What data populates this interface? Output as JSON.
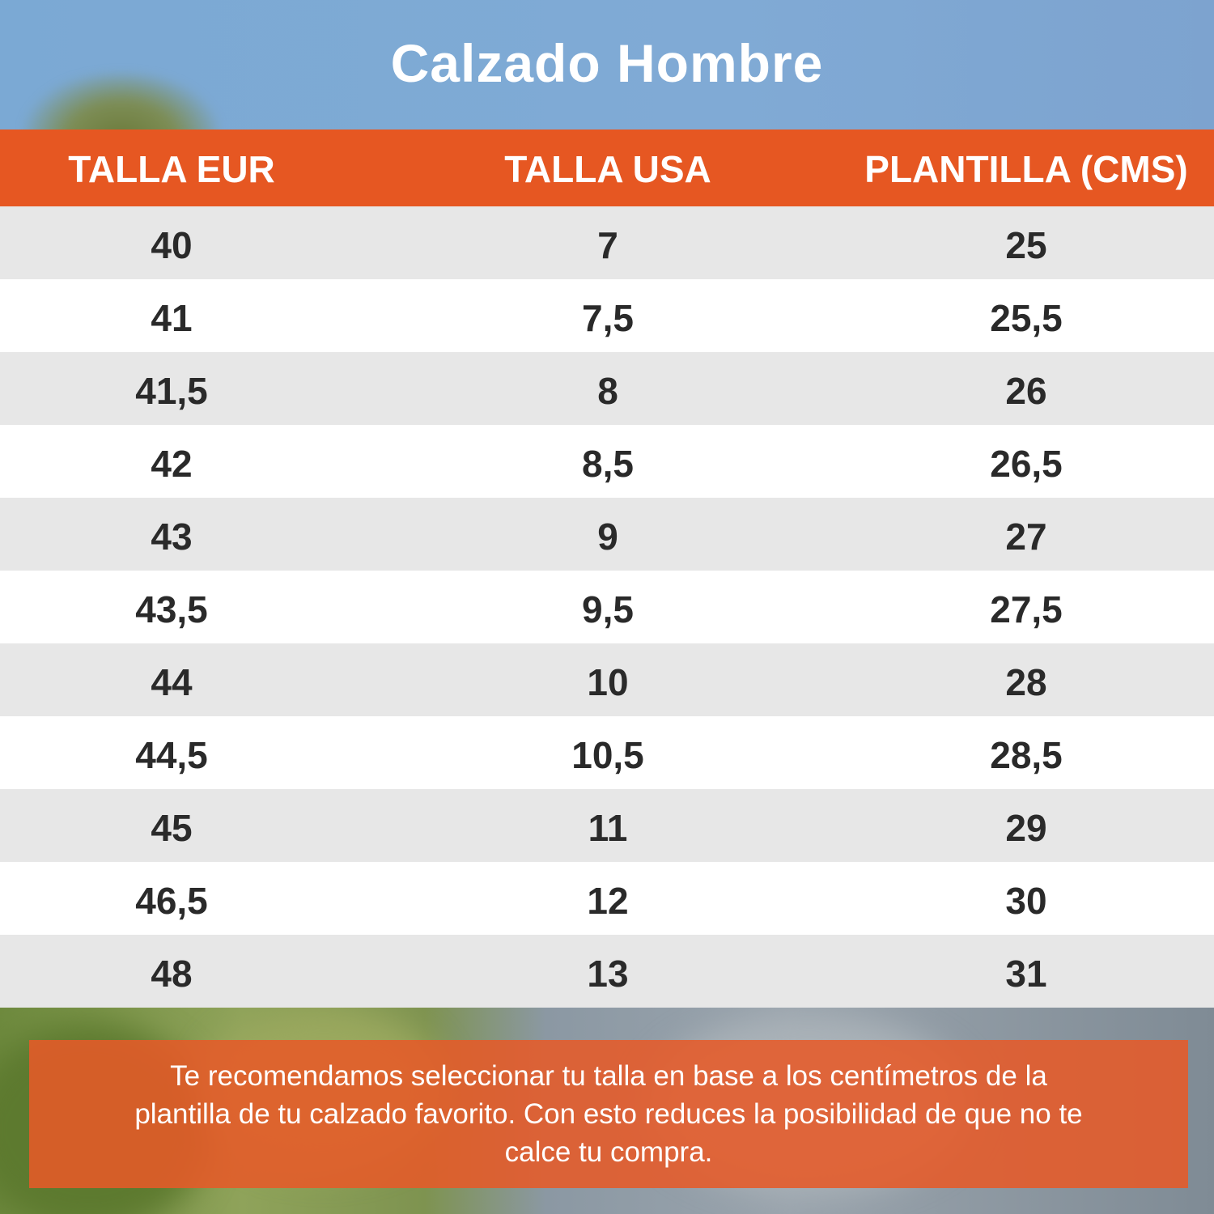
{
  "title": "Calzado Hombre",
  "colors": {
    "header": "#e65722",
    "sky": "#7ba9d4",
    "row_alt": "#e7e7e7",
    "note": "#e05a28"
  },
  "table": {
    "headers": [
      "TALLA EUR",
      "TALLA USA",
      "PLANTILLA (CMS)"
    ],
    "rows": [
      [
        "40",
        "7",
        "25"
      ],
      [
        "41",
        "7,5",
        "25,5"
      ],
      [
        "41,5",
        "8",
        "26"
      ],
      [
        "42",
        "8,5",
        "26,5"
      ],
      [
        "43",
        "9",
        "27"
      ],
      [
        "43,5",
        "9,5",
        "27,5"
      ],
      [
        "44",
        "10",
        "28"
      ],
      [
        "44,5",
        "10,5",
        "28,5"
      ],
      [
        "45",
        "11",
        "29"
      ],
      [
        "46,5",
        "12",
        "30"
      ],
      [
        "48",
        "13",
        "31"
      ]
    ]
  },
  "note": "Te recomendamos seleccionar tu talla en base a los centímetros de la plantilla de tu calzado favorito. Con esto reduces la posibilidad de que no te calce tu compra."
}
